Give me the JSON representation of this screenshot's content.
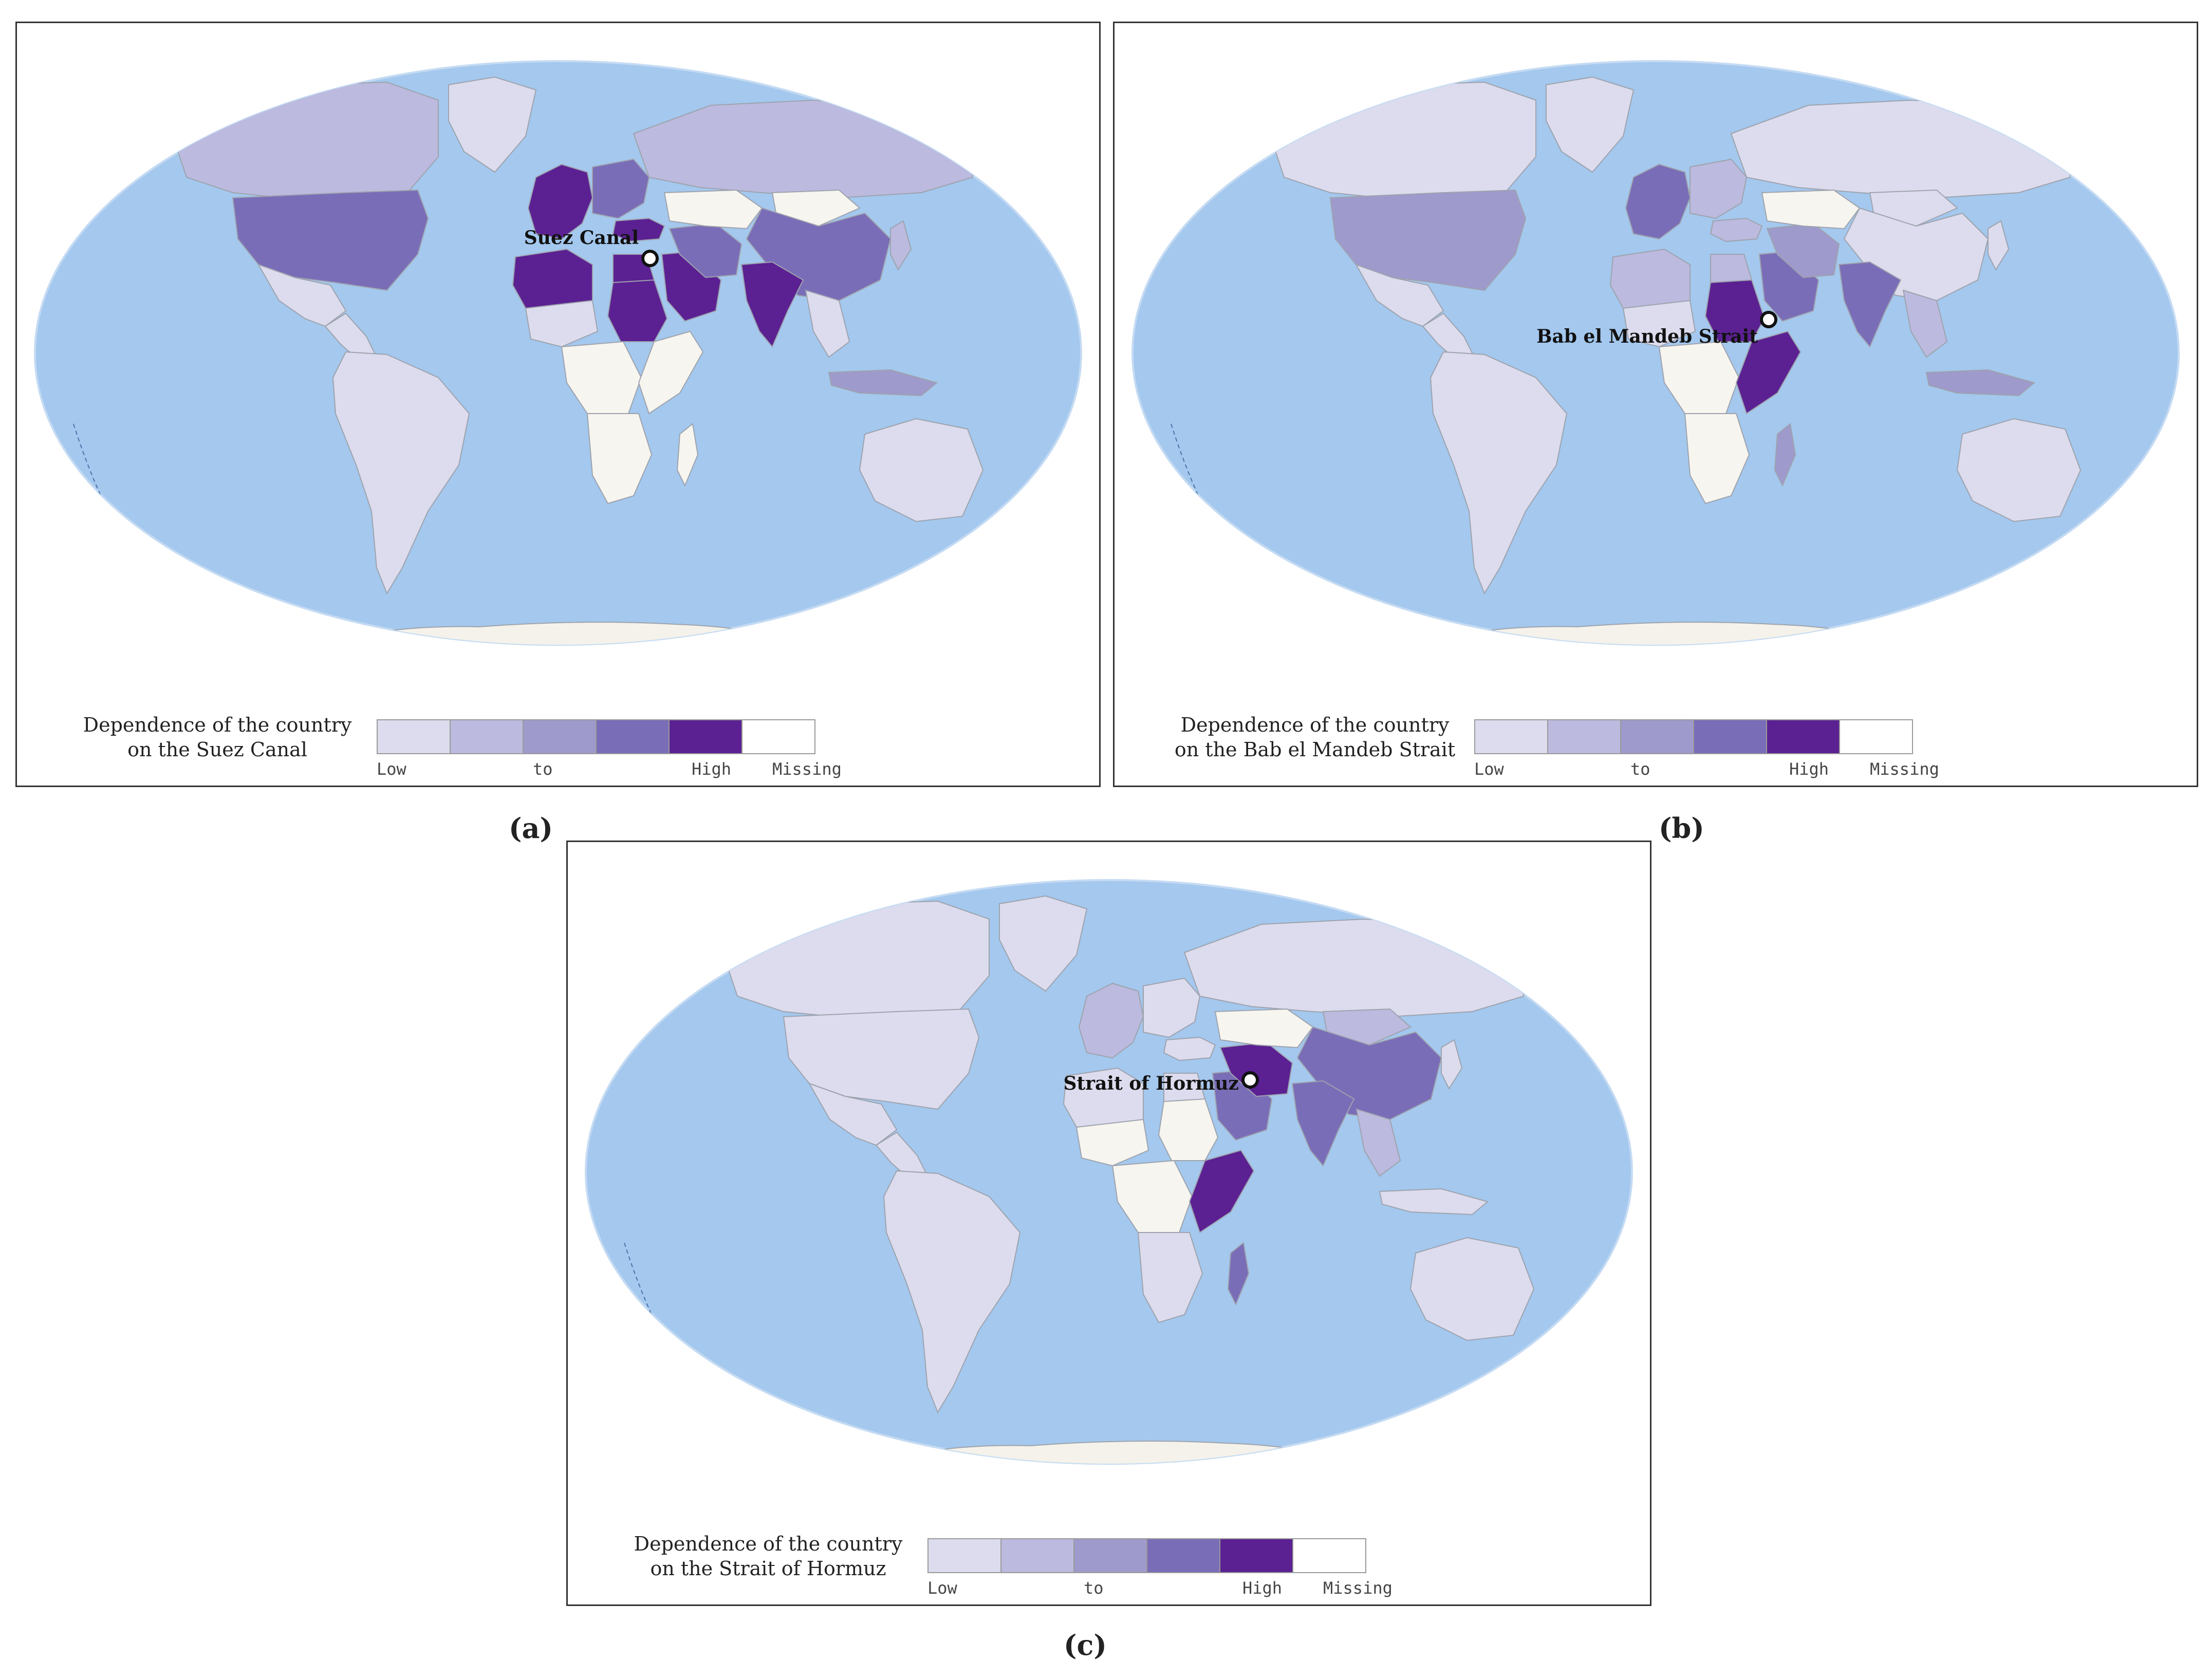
{
  "palette": {
    "ocean": "#a4c8ee",
    "ocean_edge": "#c5dbf3",
    "missing_land": "#f7f5ef",
    "antarctica": "#f4f2ea",
    "border": "#9ea3ad",
    "levels": [
      "#dcdcee",
      "#bcbadf",
      "#9e9acc",
      "#7a6db8",
      "#5b2192"
    ]
  },
  "legend_scale": {
    "low_label": "Low",
    "mid_label": "to",
    "high_label": "High",
    "missing_label": "Missing"
  },
  "panels": [
    {
      "id": "a",
      "caption": "(a)",
      "legend_title_line1": "Dependence of the country",
      "legend_title_line2": "on the Suez Canal",
      "marker_label": "Suez Canal",
      "levels": {
        "north_america_north": 1,
        "greenland": 0,
        "usa": 3,
        "mexico": 0,
        "central_america": 0,
        "south_america": 0,
        "russia": 1,
        "europe_west": 4,
        "europe_east": 3,
        "turkey": 4,
        "north_africa_west": 4,
        "sahel": 0,
        "egypt": 4,
        "sudan_region": 4,
        "central_africa": -1,
        "southern_africa": -1,
        "east_africa": -1,
        "arabia": 4,
        "iran": 3,
        "central_asia": -1,
        "mongolia": -1,
        "china": 3,
        "india": 4,
        "se_asia": 0,
        "indonesia": 2,
        "japan": 1,
        "australia": 0,
        "madagascar": -1
      }
    },
    {
      "id": "b",
      "caption": "(b)",
      "legend_title_line1": "Dependence of the country",
      "legend_title_line2": "on the Bab el Mandeb Strait",
      "marker_label": "Bab el Mandeb Strait",
      "levels": {
        "north_america_north": 0,
        "greenland": 0,
        "usa": 2,
        "mexico": 0,
        "central_america": 0,
        "south_america": 0,
        "russia": 0,
        "europe_west": 3,
        "europe_east": 1,
        "turkey": 1,
        "north_africa_west": 1,
        "sahel": 0,
        "egypt": 1,
        "sudan_region": 4,
        "central_africa": -1,
        "southern_africa": -1,
        "east_africa": 4,
        "arabia": 3,
        "iran": 2,
        "central_asia": -1,
        "mongolia": 0,
        "china": 0,
        "india": 3,
        "se_asia": 1,
        "indonesia": 2,
        "japan": 0,
        "australia": 0,
        "madagascar": 2
      }
    },
    {
      "id": "c",
      "caption": "(c)",
      "legend_title_line1": "Dependence of the country",
      "legend_title_line2": "on the Strait of Hormuz",
      "marker_label": "Strait of Hormuz",
      "levels": {
        "north_america_north": 0,
        "greenland": 0,
        "usa": 0,
        "mexico": 0,
        "central_america": 0,
        "south_america": 0,
        "russia": 0,
        "europe_west": 1,
        "europe_east": 0,
        "turkey": 0,
        "north_africa_west": 0,
        "sahel": -1,
        "egypt": 0,
        "sudan_region": -1,
        "central_africa": -1,
        "southern_africa": 0,
        "east_africa": 4,
        "arabia": 3,
        "iran": 4,
        "central_asia": -1,
        "mongolia": 1,
        "china": 3,
        "india": 3,
        "se_asia": 1,
        "indonesia": 0,
        "japan": 0,
        "australia": 0,
        "madagascar": 3
      }
    }
  ]
}
